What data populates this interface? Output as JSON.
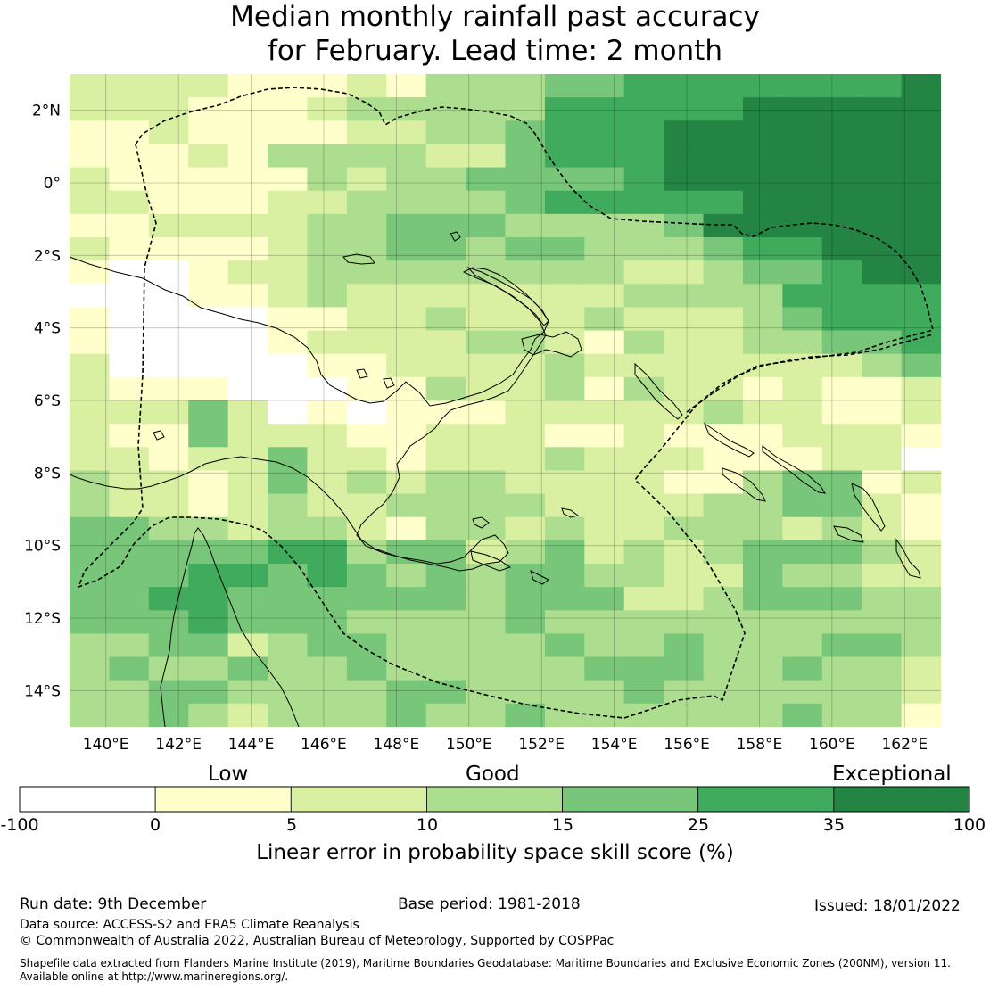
{
  "title": {
    "line1": "Median monthly rainfall past accuracy",
    "line2": "for February. Lead time: 2 month"
  },
  "map": {
    "lon_labels": [
      "140°E",
      "142°E",
      "144°E",
      "146°E",
      "148°E",
      "150°E",
      "152°E",
      "154°E",
      "156°E",
      "158°E",
      "160°E",
      "162°E"
    ],
    "lon_values": [
      140,
      142,
      144,
      146,
      148,
      150,
      152,
      154,
      156,
      158,
      160,
      162
    ],
    "lat_labels": [
      "2°N",
      "0°",
      "2°S",
      "4°S",
      "6°S",
      "8°S",
      "10°S",
      "12°S",
      "14°S"
    ],
    "lat_values": [
      2,
      0,
      -2,
      -4,
      -6,
      -8,
      -10,
      -12,
      -14
    ],
    "extent": {
      "lon_min": 139,
      "lon_max": 163,
      "lat_min": -15,
      "lat_max": 3
    },
    "skill_grid_description": "Skill score categories per ~0.83 degree cell",
    "skill_grid_rows": [
      "2222111213334455555556",
      "2221112333335555566666",
      "1121111223345556666666",
      "1112133332245556666666",
      "2111113233444456666666",
      "2211122333345555566666",
      "1122223344433334666666",
      "2111123344344333455666",
      "1001223333333322344566",
      "0001123222222233335555",
      "1000011223222322234555",
      "1000012222332132233445",
      "2000001122223222222234",
      "2111000113223132212112",
      "2224201011122222322112",
      "2114222112221121112221",
      "2212242212223222111220",
      "3221242323322221134412",
      "3221232233332222334421",
      "4433233213323223332321",
      "4444455344234232344432",
      "4445545434344332243322",
      "4455444444344422344433",
      "4445444333343333333333",
      "3344234433334334333443",
      "3433433433333444334332",
      "3344333344333343333332",
      "3343233343343333334331"
    ]
  },
  "colorbar": {
    "words": [
      "Low",
      "Good",
      "Exceptional"
    ],
    "ticks": [
      "-100",
      "0",
      "5",
      "10",
      "15",
      "25",
      "35",
      "100"
    ],
    "colors": [
      "#ffffff",
      "#ffffcc",
      "#d9f0a3",
      "#addd8e",
      "#78c679",
      "#41ab5d",
      "#238443"
    ],
    "label": "Linear error in probability space skill score (%)"
  },
  "footer": {
    "run_date": "Run date: 9th December",
    "base_period": "Base period: 1981-2018",
    "issued": "Issued: 18/01/2022",
    "data_source": "Data source: ACCESS-S2 and ERA5 Climate Reanalysis",
    "copyright": "© Commonwealth of Australia 2022, Australian Bureau of Meteorology, Supported by COSPPac",
    "shapefile_1": "Shapefile data extracted from Flanders Marine Institute (2019), Maritime Boundaries Geodatabase: Maritime Boundaries and Exclusive Economic Zones (200NM), version 11.",
    "shapefile_2": "Available online at http://www.marineregions.org/."
  }
}
